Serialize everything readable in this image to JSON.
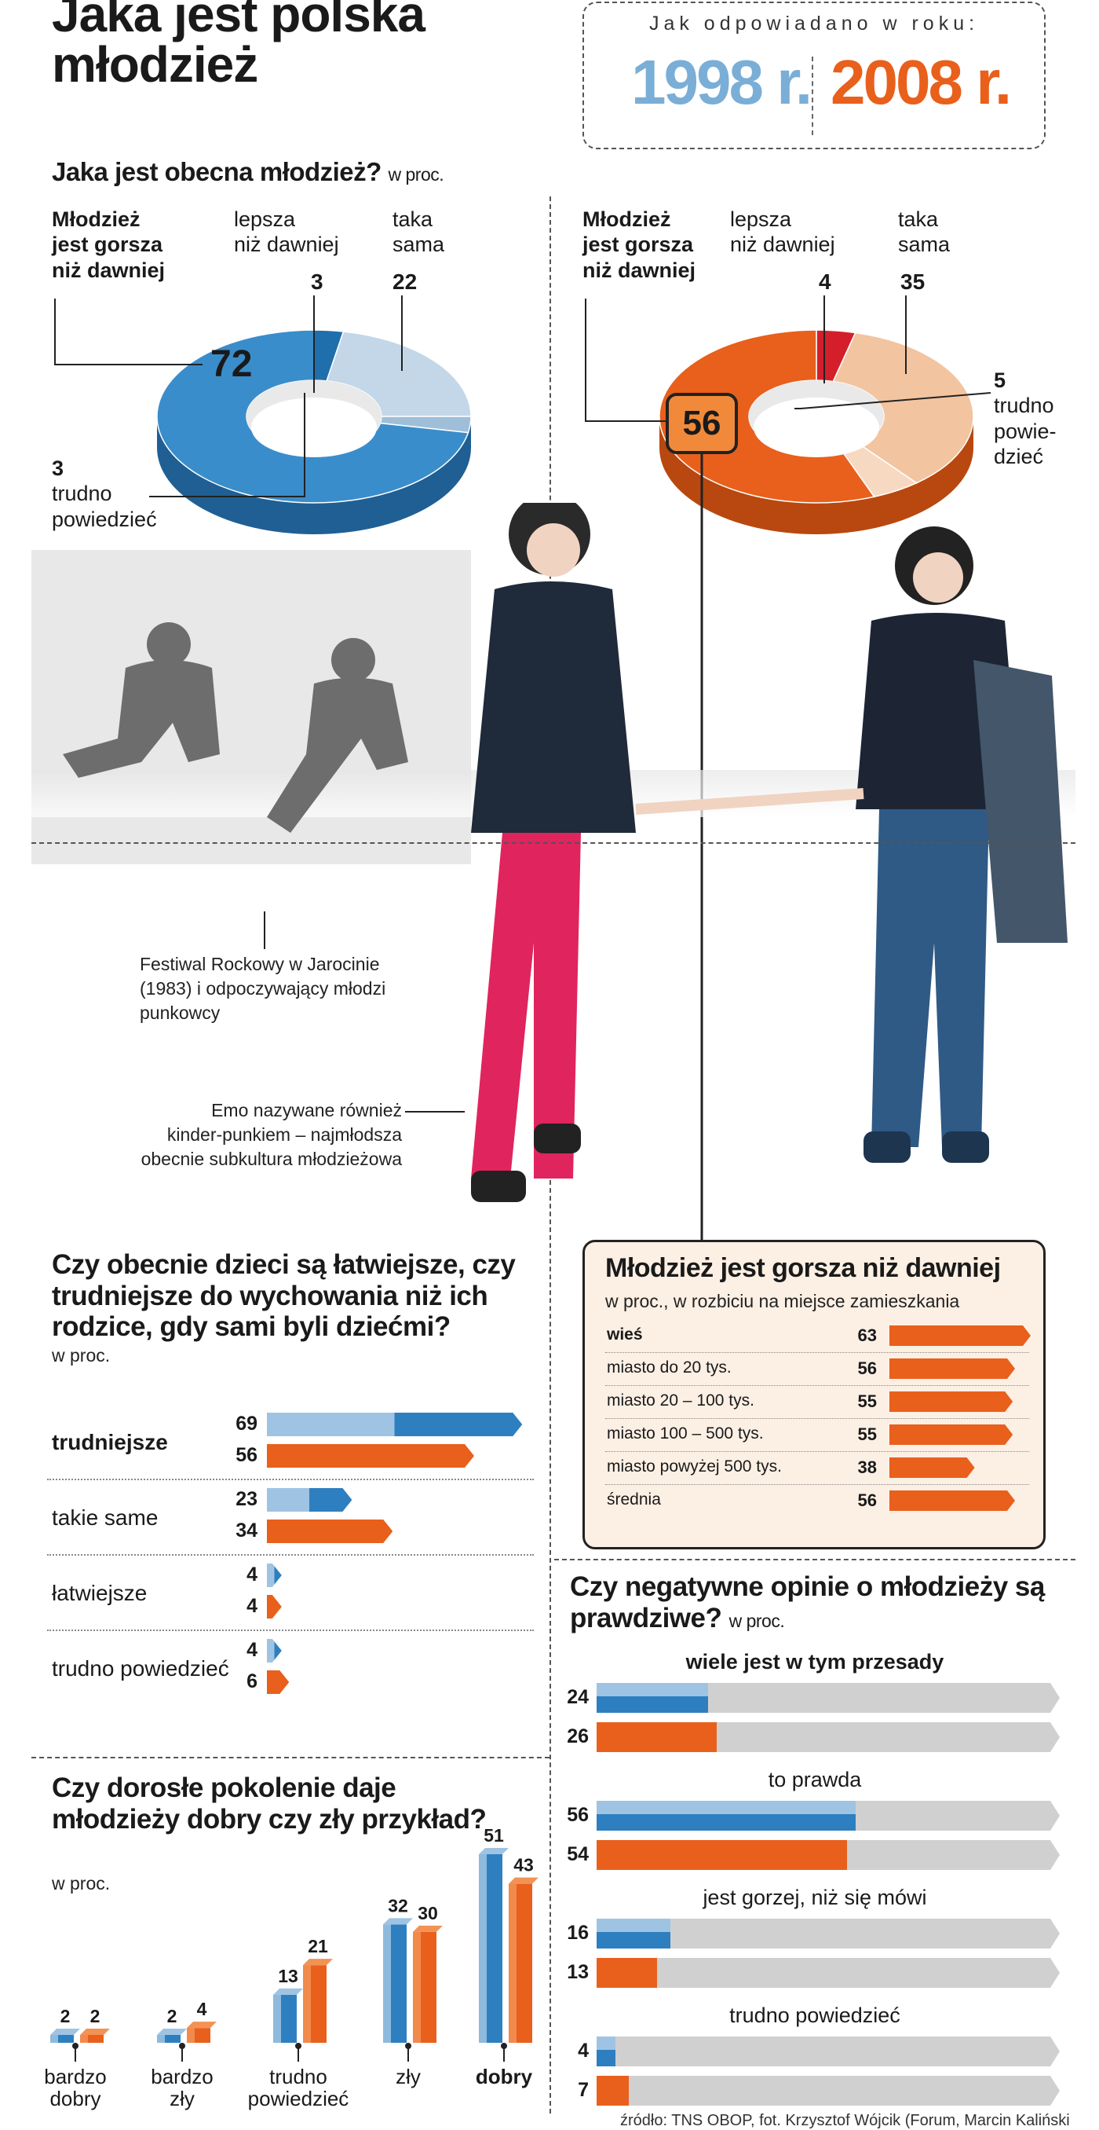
{
  "header": {
    "title_line1": "Jaka jest polska",
    "title_line2": "młodzież",
    "legend_caption": "Jak odpowiadano w roku:",
    "year_1998": "1998 r.",
    "year_2008": "2008 r."
  },
  "colors": {
    "y1998_light": "#9fc4e3",
    "y1998_dark": "#2e7fc0",
    "y2008": "#e8601c",
    "y2008_light": "#f2c09b",
    "neutral": "#d0d0d0",
    "highlight_red": "#d41f2a"
  },
  "donut_section": {
    "title": "Jaka jest obecna młodzież?",
    "unit": "w proc.",
    "label_worse_1": "Młodzież",
    "label_worse_2": "jest gorsza",
    "label_worse_3": "niż dawniej",
    "label_better_1": "lepsza",
    "label_better_2": "niż dawniej",
    "label_same_1": "taka",
    "label_same_2": "sama",
    "label_dk_1": "trudno",
    "label_dk_2": "powiedzieć",
    "label_dk_2008_1": "trudno",
    "label_dk_2008_2": "powie-",
    "label_dk_2008_3": "dzieć"
  },
  "photo_captions": {
    "jarocin_1": "Festiwal Rockowy w Jarocinie",
    "jarocin_2": "(1983) i odpoczywający młodzi",
    "jarocin_3": "punkowcy",
    "emo_1": "Emo nazywane również",
    "emo_2": "kinder-punkiem – najmłodsza",
    "emo_3": "obecnie subkultura młodzieżowa"
  },
  "chart_data": [
    {
      "type": "pie",
      "year": "1998",
      "categories": [
        "Młodzież jest gorsza niż dawniej",
        "lepsza niż dawniej",
        "taka sama",
        "trudno powiedzieć"
      ],
      "values": [
        72,
        3,
        22,
        3
      ],
      "labels": [
        "72",
        "3",
        "22",
        "3"
      ]
    },
    {
      "type": "pie",
      "year": "2008",
      "categories": [
        "Młodzież jest gorsza niż dawniej",
        "lepsza niż dawniej",
        "taka sama",
        "trudno powiedzieć"
      ],
      "values": [
        56,
        4,
        35,
        5
      ],
      "labels": [
        "56",
        "4",
        "35",
        "5"
      ]
    },
    {
      "type": "bar",
      "title": "Czy obecnie dzieci są łatwiejsze, czy trudniejsze do wychowania niż ich rodzice, gdy sami byli dziećmi?",
      "unit": "w proc.",
      "categories": [
        "trudniejsze",
        "takie same",
        "łatwiejsze",
        "trudno powiedzieć"
      ],
      "series": [
        {
          "name": "1998 r.",
          "values": [
            69,
            23,
            4,
            4
          ]
        },
        {
          "name": "2008 r.",
          "values": [
            56,
            34,
            4,
            6
          ]
        }
      ]
    },
    {
      "type": "bar",
      "title": "Młodzież jest gorsza niż dawniej",
      "subtitle": "w proc., w rozbiciu na miejsce zamieszkania",
      "categories": [
        "wieś",
        "miasto do 20 tys.",
        "miasto 20 – 100 tys.",
        "miasto 100 – 500 tys.",
        "miasto powyżej 500 tys.",
        "średnia"
      ],
      "values": [
        63,
        56,
        55,
        55,
        38,
        56
      ]
    },
    {
      "type": "bar",
      "title": "Czy negatywne opinie o młodzieży są prawdziwe?",
      "unit": "w proc.",
      "categories": [
        "wiele jest w tym przesady",
        "to prawda",
        "jest gorzej, niż się mówi",
        "trudno powiedzieć"
      ],
      "series": [
        {
          "name": "1998 r.",
          "values": [
            24,
            56,
            16,
            4
          ]
        },
        {
          "name": "2008 r.",
          "values": [
            26,
            54,
            13,
            7
          ]
        }
      ]
    },
    {
      "type": "bar",
      "title": "Czy dorosłe pokolenie daje młodzieży dobry czy zły przykład?",
      "unit": "w proc.",
      "categories": [
        "bardzo dobry",
        "bardzo zły",
        "trudno powiedzieć",
        "zły",
        "dobry"
      ],
      "category_lines": [
        [
          "bardzo",
          "dobry"
        ],
        [
          "bardzo",
          "zły"
        ],
        [
          "trudno",
          "powiedzieć"
        ],
        [
          "zły"
        ],
        [
          "dobry"
        ]
      ],
      "series": [
        {
          "name": "1998 r.",
          "values": [
            2,
            2,
            13,
            32,
            51
          ]
        },
        {
          "name": "2008 r.",
          "values": [
            2,
            4,
            21,
            30,
            43
          ]
        }
      ]
    }
  ],
  "footer": "źródło: TNS OBOP, fot. Krzysztof Wójcik (Forum, Marcin Kaliński"
}
